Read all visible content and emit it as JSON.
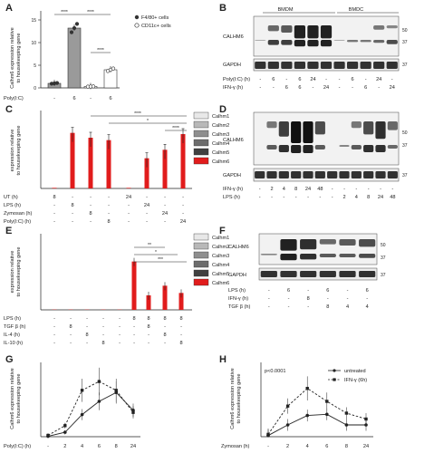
{
  "panels": {
    "A": {
      "letter": "A",
      "ylabel_1": "Calhm6 expression relative",
      "ylabel_2": "to housekeeping gene",
      "yticks": [
        "0",
        "5",
        "10",
        "15"
      ],
      "legend": [
        "F4/80+ cells",
        "CD11c+ cells"
      ],
      "row_label": "Poly(I:C)",
      "row_values": [
        "-",
        "6",
        "-",
        "6"
      ],
      "sig": [
        "****",
        "****",
        "****"
      ]
    },
    "B": {
      "letter": "B",
      "group_1": "BMDM",
      "group_2": "BMDC",
      "blot_label": "CALHM6",
      "control_label": "GAPDH",
      "mw": [
        "50",
        "37",
        "37"
      ],
      "rows": [
        {
          "label": "Poly(I:C) (h)",
          "values": [
            "-",
            "6",
            "-",
            "6",
            "24",
            "-",
            "-",
            "6",
            "-",
            "24",
            "-"
          ]
        },
        {
          "label": "IFN-γ (h)",
          "values": [
            "-",
            "-",
            "6",
            "6",
            "-",
            "24",
            "-",
            "-",
            "6",
            "-",
            "24"
          ]
        }
      ]
    },
    "C": {
      "letter": "C",
      "ylabel_1": "expression relative",
      "ylabel_2": "to housekeeping gene",
      "legend": [
        "Calhm1",
        "Calhm2",
        "Calhm3",
        "Calhm4",
        "Calhm5",
        "Calhm6"
      ],
      "legend_colors": [
        "#e8e8e8",
        "#b8b8b8",
        "#8e8e8e",
        "#6c6c6c",
        "#404040",
        "#e11c1c"
      ],
      "rows": [
        {
          "label": "UT (h)",
          "values": [
            "8",
            "-",
            "-",
            "-",
            "24",
            "-",
            "-",
            "-"
          ]
        },
        {
          "label": "LPS (h)",
          "values": [
            "-",
            "8",
            "-",
            "-",
            "-",
            "24",
            "-",
            "-"
          ]
        },
        {
          "label": "Zymosan (h)",
          "values": [
            "-",
            "-",
            "8",
            "-",
            "-",
            "-",
            "24",
            "-"
          ]
        },
        {
          "label": "Poly(I:C) (h)",
          "values": [
            "-",
            "-",
            "-",
            "8",
            "-",
            "-",
            "-",
            "24"
          ]
        }
      ],
      "sig": [
        "****",
        "*",
        "****"
      ]
    },
    "D": {
      "letter": "D",
      "blot_label": "CALHM6",
      "control_label": "GAPDH",
      "mw": [
        "50",
        "37",
        "37"
      ],
      "rows": [
        {
          "label": "IFN-γ (h)",
          "values": [
            "-",
            "2",
            "4",
            "8",
            "24",
            "48",
            "-",
            "-",
            "-",
            "-",
            "-",
            "-"
          ]
        },
        {
          "label": "LPS (h)",
          "values": [
            "-",
            "-",
            "-",
            "-",
            "-",
            "-",
            "-",
            "2",
            "4",
            "8",
            "24",
            "48"
          ]
        }
      ]
    },
    "E": {
      "letter": "E",
      "ylabel_1": "expression relative",
      "ylabel_2": "to housekeeping gene",
      "legend": [
        "Calhm1",
        "Calhm2",
        "Calhm3",
        "Calhm4",
        "Calhm5",
        "Calhm6"
      ],
      "rows": [
        {
          "label": "LPS (h)",
          "values": [
            "-",
            "-",
            "-",
            "-",
            "-",
            "8",
            "8",
            "8",
            "8"
          ]
        },
        {
          "label": "TGF β (h)",
          "values": [
            "-",
            "8",
            "-",
            "-",
            "-",
            "-",
            "8",
            "-",
            "-"
          ]
        },
        {
          "label": "IL-4 (h)",
          "values": [
            "-",
            "-",
            "8",
            "-",
            "-",
            "-",
            "-",
            "8",
            "-"
          ]
        },
        {
          "label": "IL-10 (h)",
          "values": [
            "-",
            "-",
            "-",
            "8",
            "-",
            "-",
            "-",
            "-",
            "8"
          ]
        }
      ],
      "sig": [
        "**",
        "*",
        "***"
      ]
    },
    "F": {
      "letter": "F",
      "blot_label": "CALHM6",
      "control_label": "GAPDH",
      "mw": [
        "50",
        "37",
        "37"
      ],
      "rows": [
        {
          "label": "LPS (h)",
          "values": [
            "-",
            "6",
            "-",
            "6",
            "-",
            "6"
          ]
        },
        {
          "label": "IFN-γ (h)",
          "values": [
            "-",
            "-",
            "8",
            "-",
            "-",
            "-"
          ]
        },
        {
          "label": "TGF β (h)",
          "values": [
            "-",
            "-",
            "-",
            "8",
            "4",
            "4"
          ]
        }
      ]
    },
    "G": {
      "letter": "G",
      "ylabel_1": "Calhm6 expression relative",
      "ylabel_2": "to housekeeping gene",
      "xlabel": "Poly(I:C) (h)",
      "xticks": [
        "-",
        "2",
        "4",
        "6",
        "8",
        "24"
      ]
    },
    "H": {
      "letter": "H",
      "ylabel_1": "Calhm6 expression relative",
      "ylabel_2": "to housekeeping gene",
      "xlabel": "Zymosan (h)",
      "xticks": [
        "-",
        "2",
        "4",
        "6",
        "8",
        "24"
      ],
      "pvalue": "p<0.0001",
      "legend": [
        "untreated",
        "IFN-γ (6h)"
      ]
    }
  },
  "chart_data": [
    {
      "panel": "A",
      "type": "bar",
      "ylim": [
        0,
        15
      ],
      "categories": [
        "F4/80+ -",
        "F4/80+ Poly(I:C) 6",
        "CD11c+ -",
        "CD11c+ Poly(I:C) 6"
      ],
      "values": [
        1.0,
        13.2,
        0.3,
        4.0
      ]
    },
    {
      "panel": "C",
      "type": "bar",
      "ylim": [
        0,
        6
      ],
      "categories": [
        "UT 8",
        "LPS 8",
        "Zym 8",
        "PIC 8",
        "UT 24",
        "LPS 24",
        "Zym 24",
        "PIC 24"
      ],
      "series": [
        {
          "name": "Calhm6",
          "values": [
            0.05,
            4.6,
            4.2,
            4.0,
            0.05,
            2.5,
            3.2,
            4.5
          ]
        }
      ]
    },
    {
      "panel": "E",
      "type": "bar",
      "ylim": [
        0,
        6
      ],
      "categories": [
        "-",
        "TGFb",
        "IL-4",
        "IL-10",
        "-",
        "LPS",
        "LPS+TGFb",
        "LPS+IL-4",
        "LPS+IL-10"
      ],
      "series": [
        {
          "name": "Calhm6",
          "values": [
            0.02,
            0.02,
            0.02,
            0.02,
            0.02,
            4.0,
            1.2,
            2.0,
            1.4
          ]
        }
      ]
    },
    {
      "panel": "G",
      "type": "line",
      "ylim": [
        0,
        16
      ],
      "x": [
        "-",
        "2",
        "4",
        "6",
        "8",
        "24"
      ],
      "series": [
        {
          "values": [
            0.1,
            1.0,
            5.0,
            8.0,
            10.0,
            6.0
          ]
        },
        {
          "values": [
            0.3,
            2.5,
            10.5,
            12.5,
            10.5,
            5.5
          ]
        }
      ]
    },
    {
      "panel": "H",
      "type": "line",
      "ylim": [
        0,
        6
      ],
      "x": [
        "-",
        "2",
        "4",
        "6",
        "8",
        "24"
      ],
      "series": [
        {
          "name": "untreated",
          "values": [
            0.1,
            1.0,
            1.8,
            1.9,
            1.0,
            1.0
          ]
        },
        {
          "name": "IFN-γ (6h)",
          "values": [
            0.2,
            2.6,
            4.1,
            3.0,
            2.0,
            1.5
          ]
        }
      ]
    }
  ]
}
